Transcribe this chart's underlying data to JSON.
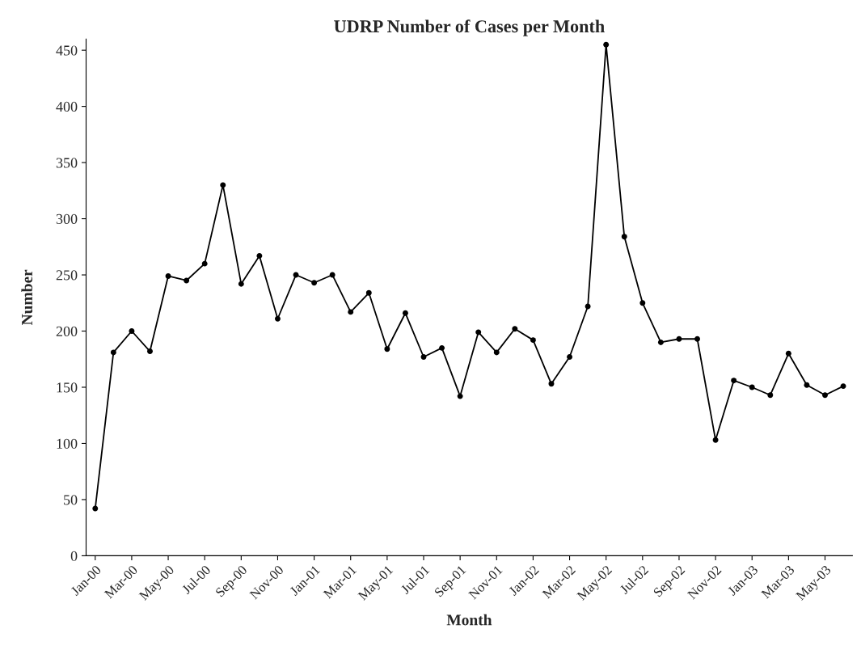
{
  "chart_data": {
    "type": "line",
    "title": "UDRP Number of Cases per Month",
    "xlabel": "Month",
    "ylabel": "Number",
    "categories": [
      "Jan-00",
      null,
      "Mar-00",
      null,
      "May-00",
      null,
      "Jul-00",
      null,
      "Sep-00",
      null,
      "Nov-00",
      null,
      "Jan-01",
      null,
      "Mar-01",
      null,
      "May-01",
      null,
      "Jul-01",
      null,
      "Sep-01",
      null,
      "Nov-01",
      null,
      "Jan-02",
      null,
      "Mar-02",
      null,
      "May-02",
      null,
      "Jul-02",
      null,
      "Sep-02",
      null,
      "Nov-02",
      null,
      "Jan-03",
      null,
      "Mar-03",
      null,
      "May-03",
      null
    ],
    "series": [
      {
        "color": "#000000",
        "values": [
          42,
          181,
          200,
          182,
          249,
          245,
          260,
          330,
          242,
          267,
          211,
          250,
          243,
          250,
          217,
          234,
          184,
          216,
          177,
          185,
          142,
          199,
          181,
          202,
          192,
          153,
          177,
          222,
          455,
          284,
          225,
          190,
          193,
          193,
          103,
          156,
          150,
          143,
          180,
          152,
          143,
          151
        ]
      }
    ],
    "ylim": [
      0,
      460
    ],
    "yticks": [
      0,
      50,
      100,
      150,
      200,
      250,
      300,
      350,
      400,
      450
    ],
    "grid": false,
    "legend": false,
    "marker": "circle",
    "line_style": "solid"
  }
}
